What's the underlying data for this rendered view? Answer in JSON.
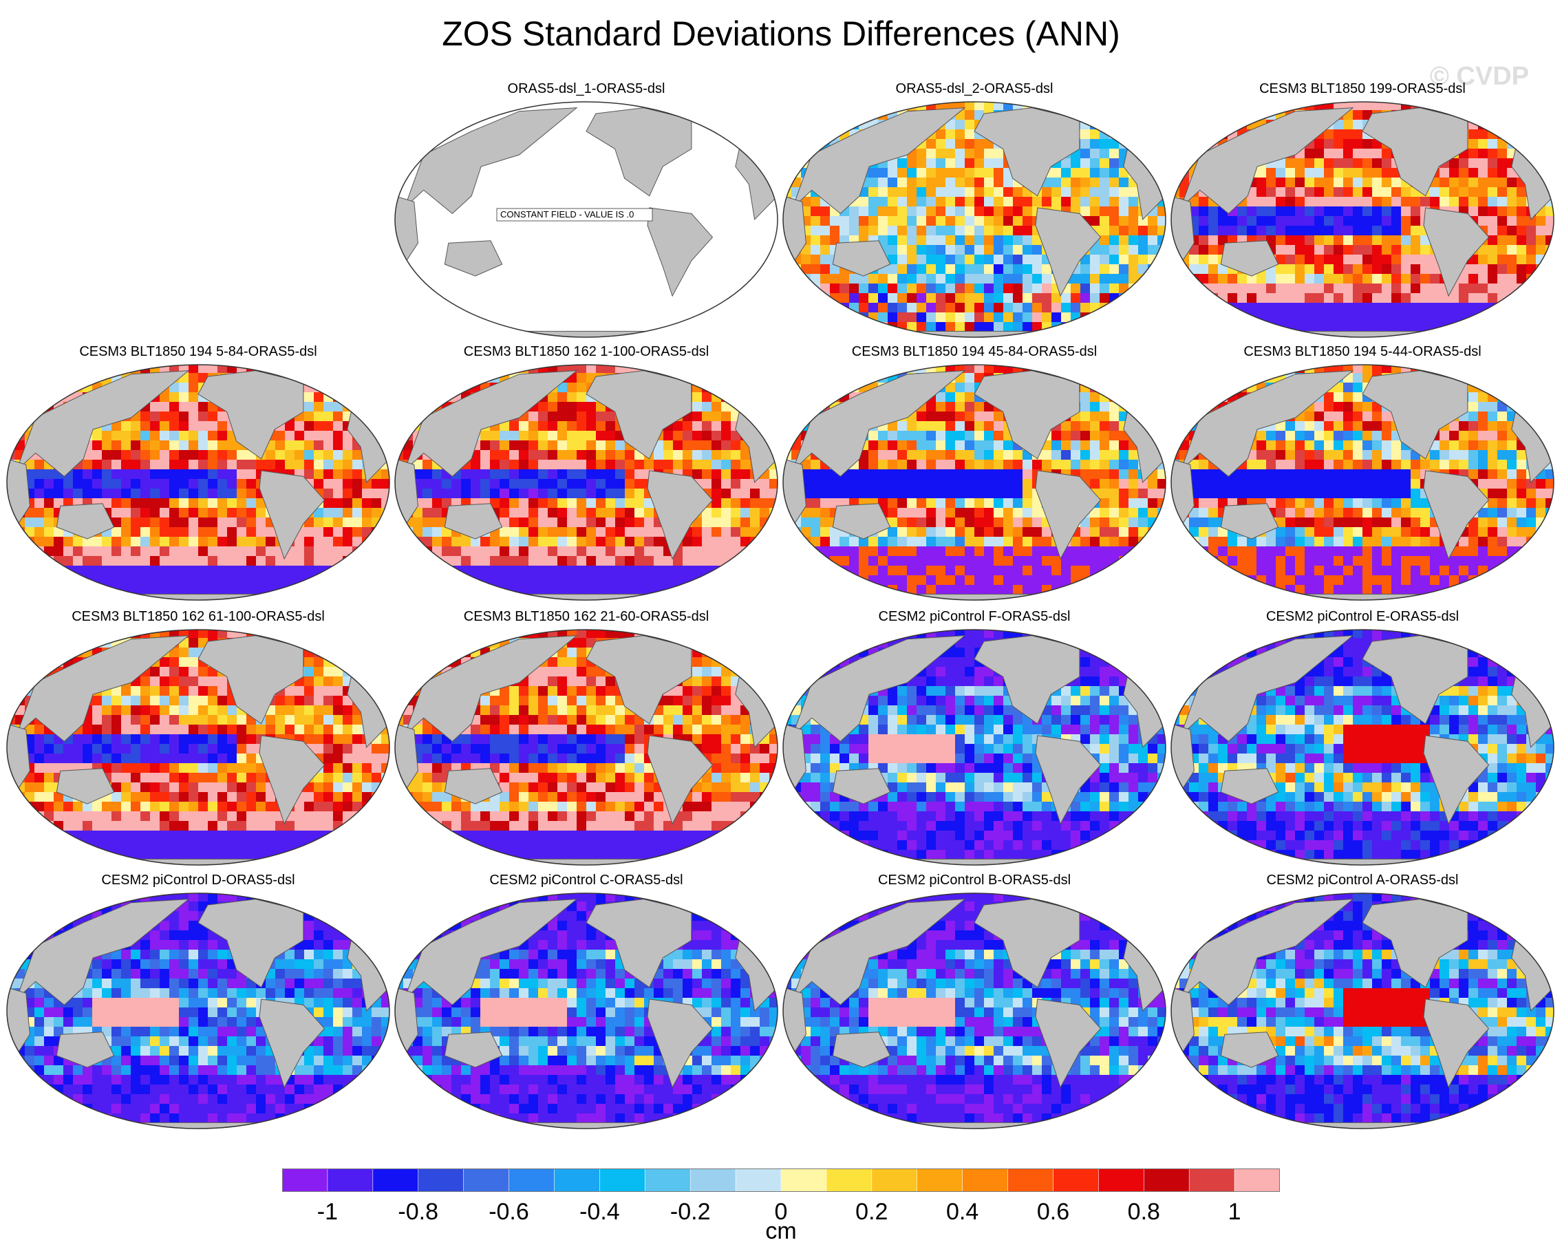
{
  "title": "ZOS Standard Deviations Differences (ANN)",
  "watermark": "© CVDP",
  "panels": [
    {
      "label": "ORAS5-dsl_1-ORAS5-dsl",
      "constant": true,
      "note": "CONSTANT FIELD - VALUE IS .0",
      "pattern": "none"
    },
    {
      "label": "ORAS5-dsl_2-ORAS5-dsl",
      "pattern": "warm-blue"
    },
    {
      "label": "CESM3 BLT1850 199-ORAS5-dsl",
      "pattern": "pink-red"
    },
    {
      "label": "CESM3 BLT1850 194 5-84-ORAS5-dsl",
      "pattern": "pink-red"
    },
    {
      "label": "CESM3 BLT1850 162 1-100-ORAS5-dsl",
      "pattern": "pink-red"
    },
    {
      "label": "CESM3 BLT1850 194 45-84-ORAS5-dsl",
      "pattern": "mixed"
    },
    {
      "label": "CESM3 BLT1850 194 5-44-ORAS5-dsl",
      "pattern": "mixed"
    },
    {
      "label": "CESM3 BLT1850 162 61-100-ORAS5-dsl",
      "pattern": "pink-red"
    },
    {
      "label": "CESM3 BLT1850 162 21-60-ORAS5-dsl",
      "pattern": "pink-red"
    },
    {
      "label": "CESM2 piControl F-ORAS5-dsl",
      "pattern": "blue-purple"
    },
    {
      "label": "CESM2 piControl E-ORAS5-dsl",
      "pattern": "blue-mixed"
    },
    {
      "label": "CESM2 piControl D-ORAS5-dsl",
      "pattern": "blue-purple"
    },
    {
      "label": "CESM2 piControl C-ORAS5-dsl",
      "pattern": "blue-purple"
    },
    {
      "label": "CESM2 piControl B-ORAS5-dsl",
      "pattern": "blue-purple"
    },
    {
      "label": "CESM2 piControl A-ORAS5-dsl",
      "pattern": "blue-mixed"
    }
  ],
  "colorbar": {
    "colors": [
      "#8a1df2",
      "#4f1df2",
      "#1212f5",
      "#2e4adf",
      "#3e6ee6",
      "#2b87f2",
      "#1aa6f2",
      "#06bcf2",
      "#58c4ef",
      "#9cd0ef",
      "#c4e4f5",
      "#fff6a6",
      "#fde23c",
      "#fcc420",
      "#fda50e",
      "#fd8809",
      "#fd5a09",
      "#fc2c0b",
      "#e9050a",
      "#c80309",
      "#dd4040",
      "#fbb0b2"
    ],
    "tick_labels": [
      "-1",
      "-0.8",
      "-0.6",
      "-0.4",
      "-0.2",
      "0",
      "0.2",
      "0.4",
      "0.6",
      "0.8",
      "1"
    ],
    "tick_values": [
      -1,
      -0.8,
      -0.6,
      -0.4,
      -0.2,
      0,
      0.2,
      0.4,
      0.6,
      0.8,
      1
    ],
    "units": "cm"
  },
  "land_color": "#c0c0c0",
  "ocean_blank_color": "#ffffff"
}
